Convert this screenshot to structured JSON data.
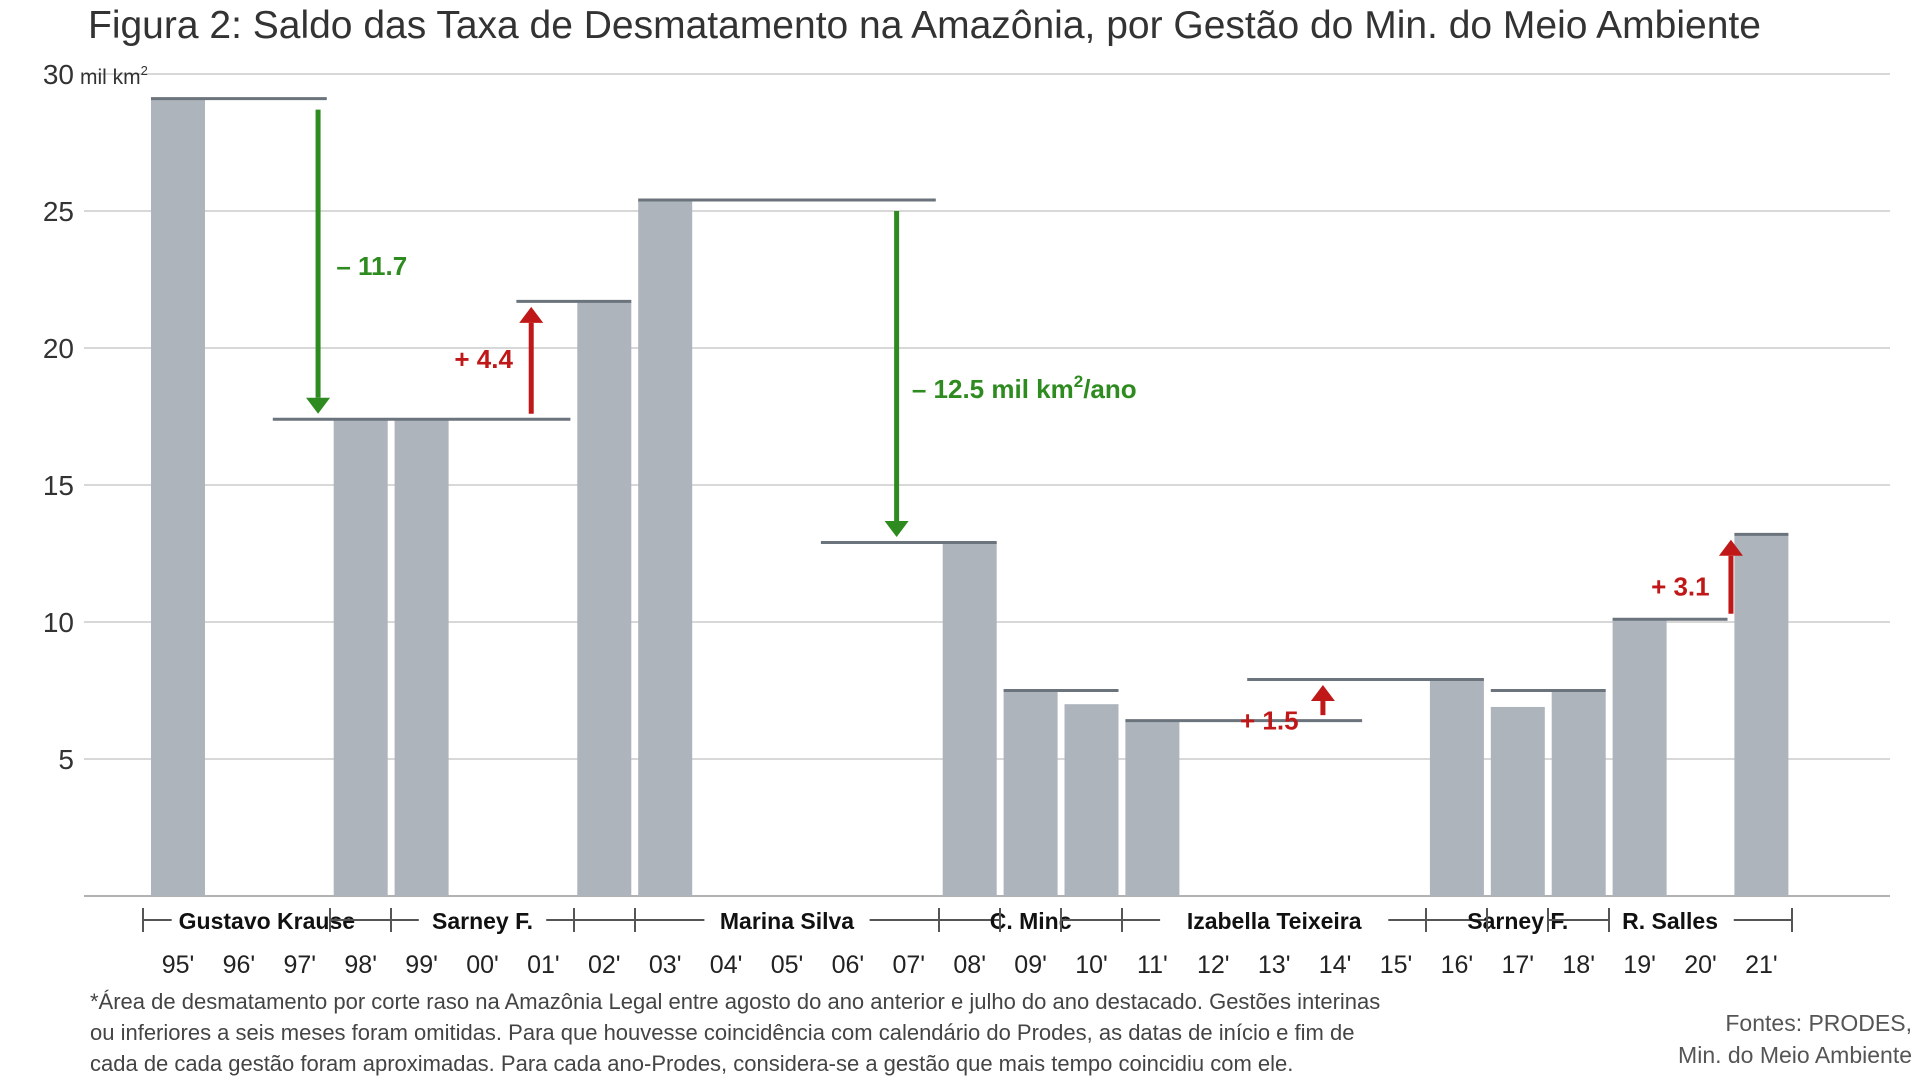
{
  "title": "Figura 2: Saldo das Taxa de Desmatamento na Amazônia, por Gestão do Min. do Meio Ambiente",
  "chart_data": {
    "type": "bar",
    "ylabel_unit": "mil km",
    "ylabel_unit_sup": "2",
    "ylim": [
      0,
      30
    ],
    "yticks": [
      5,
      10,
      15,
      20,
      25,
      30
    ],
    "grid": true,
    "categories": [
      "95'",
      "96'",
      "97'",
      "98'",
      "99'",
      "00'",
      "01'",
      "02'",
      "03'",
      "04'",
      "05'",
      "06'",
      "07'",
      "08'",
      "09'",
      "10'",
      "11'",
      "12'",
      "13'",
      "14'",
      "15'",
      "16'",
      "17'",
      "18'",
      "19'",
      "20'",
      "21'"
    ],
    "values": [
      29.1,
      null,
      null,
      17.4,
      17.4,
      null,
      null,
      21.7,
      25.4,
      null,
      null,
      null,
      null,
      12.9,
      7.5,
      7.0,
      6.4,
      null,
      null,
      null,
      null,
      7.9,
      6.9,
      7.5,
      10.1,
      null,
      13.2
    ],
    "levels": [
      {
        "from": 0,
        "to": 2,
        "value": 29.1
      },
      {
        "from": 2,
        "to": 6,
        "value": 17.4
      },
      {
        "from": 6,
        "to": 7,
        "value": 21.7
      },
      {
        "from": 8,
        "to": 12,
        "value": 25.4
      },
      {
        "from": 11,
        "to": 13,
        "value": 12.9
      },
      {
        "from": 14,
        "to": 15,
        "value": 7.5
      },
      {
        "from": 16,
        "to": 19,
        "value": 6.4
      },
      {
        "from": 18,
        "to": 21,
        "value": 7.9
      },
      {
        "from": 22,
        "to": 23,
        "value": 7.5
      },
      {
        "from": 24,
        "to": 25,
        "value": 10.1
      },
      {
        "from": 26,
        "to": 26,
        "value": 13.2
      }
    ],
    "annotations": [
      {
        "label": "– 11.7",
        "unit": "",
        "sup": "",
        "unit_suffix": "",
        "direction": "down",
        "at": 2.3,
        "from": 28.7,
        "to": 17.6,
        "color": "#2e8b1f",
        "label_at": 2.6,
        "label_y": 23.0,
        "anchor": "start"
      },
      {
        "label": "+ 4.4",
        "unit": "",
        "sup": "",
        "unit_suffix": "",
        "direction": "up",
        "at": 5.8,
        "from": 17.6,
        "to": 21.5,
        "color": "#c01818",
        "label_at": 5.5,
        "label_y": 19.6,
        "anchor": "end"
      },
      {
        "label": "– 12.5",
        "unit": " mil km",
        "sup": "2",
        "unit_suffix": "/ano",
        "direction": "down",
        "at": 11.8,
        "from": 25.0,
        "to": 13.1,
        "color": "#2e8b1f",
        "label_at": 12.05,
        "label_y": 18.5,
        "anchor": "start"
      },
      {
        "label": "+ 1.5",
        "unit": "",
        "sup": "",
        "unit_suffix": "",
        "direction": "up",
        "at": 18.8,
        "from": 6.6,
        "to": 7.7,
        "color": "#c01818",
        "label_at": 18.4,
        "label_y": 6.4,
        "anchor": "end"
      },
      {
        "label": "+ 3.1",
        "unit": "",
        "sup": "",
        "unit_suffix": "",
        "direction": "up",
        "at": 25.5,
        "from": 10.3,
        "to": 13.0,
        "color": "#c01818",
        "label_at": 25.15,
        "label_y": 11.3,
        "anchor": "end"
      }
    ],
    "administrations": [
      {
        "name": "Gustavo Krause",
        "from": 0,
        "to": 3
      },
      {
        "name": "Sarney F.",
        "from": 3,
        "to": 7
      },
      {
        "name": "Marina Silva",
        "from": 7,
        "to": 13
      },
      {
        "name": "C. Minc",
        "from": 13,
        "to": 15
      },
      {
        "name": "Izabella Teixeira",
        "from": 15,
        "to": 21
      },
      {
        "name": "Sarney F.",
        "from": 21,
        "to": 23
      },
      {
        "name": "R. Salles",
        "from": 23,
        "to": 26
      }
    ],
    "colors": {
      "bar": "#adb4bc",
      "level": "#6b737c",
      "grid": "#cccccc",
      "positive": "#c01818",
      "negative": "#2e8b1f"
    }
  },
  "footnote": [
    "*Área de desmatamento por corte raso na Amazônia Legal entre agosto do ano anterior e julho do ano destacado. Gestões interinas",
    "ou  inferiores a seis meses foram omitidas. Para que houvesse coincidência com calendário do Prodes, as datas de início e fim de",
    "cada de cada gestão foram aproximadas. Para cada ano-Prodes, considera-se a gestão que mais tempo coincidiu com ele."
  ],
  "sources": [
    "Fontes: PRODES,",
    "Min. do Meio Ambiente"
  ]
}
